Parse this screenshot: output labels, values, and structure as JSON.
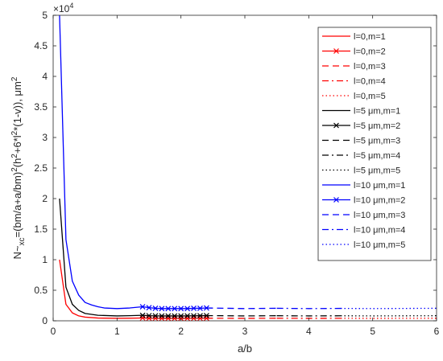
{
  "chart_data": {
    "type": "line",
    "xlabel": "a/b",
    "ylabel": "N~xc=(bm/a+a/bm)2(h2+6*l2*(1-v)), μm2",
    "ylabel_parts": {
      "p1": "N~",
      "sub1": "xc",
      "p2": "=(bm/a+a/bm)",
      "sup1": "2",
      "p3": "(h",
      "sup2": "2",
      "p4": "+6*l",
      "sup3": "2",
      "p5": "*(1-v)), μm",
      "sup4": "2"
    },
    "y_multiplier": "×10",
    "y_multiplier_exp": "4",
    "xlim": [
      0,
      6
    ],
    "ylim": [
      0,
      5
    ],
    "x_ticks": [
      0,
      1,
      2,
      3,
      4,
      5,
      6
    ],
    "y_ticks": [
      0,
      0.5,
      1,
      1.5,
      2,
      2.5,
      3,
      3.5,
      4,
      4.5,
      5
    ],
    "x_tick_labels": [
      "0",
      "1",
      "2",
      "3",
      "4",
      "5",
      "6"
    ],
    "y_tick_labels": [
      "0",
      "0.5",
      "1",
      "1.5",
      "2",
      "2.5",
      "3",
      "3.5",
      "4",
      "4.5",
      "5"
    ],
    "grid": false,
    "legend_position": "top-right",
    "colors": {
      "l0": "#ff0000",
      "l5": "#000000",
      "l10": "#0000ff"
    },
    "series": [
      {
        "name": "l=0,m=1",
        "color": "#ff0000",
        "style": "solid",
        "marker": "none",
        "x": [
          0.1,
          0.2,
          0.3,
          0.4,
          0.5,
          0.7,
          1.0,
          1.2,
          1.4
        ],
        "y": [
          1.0,
          0.27,
          0.13,
          0.08,
          0.06,
          0.045,
          0.04,
          0.042,
          0.046
        ]
      },
      {
        "name": "l=0,m=2",
        "color": "#ff0000",
        "style": "solid",
        "marker": "x",
        "x": [
          1.4,
          1.5,
          1.6,
          1.7,
          1.8,
          1.9,
          2.0,
          2.1,
          2.2,
          2.3,
          2.4
        ],
        "y": [
          0.046,
          0.042,
          0.041,
          0.04,
          0.04,
          0.04,
          0.04,
          0.04,
          0.041,
          0.041,
          0.042
        ]
      },
      {
        "name": "l=0,m=3",
        "color": "#ff0000",
        "style": "dash",
        "marker": "none",
        "x": [
          2.4,
          3.0,
          3.5
        ],
        "y": [
          0.042,
          0.04,
          0.042
        ]
      },
      {
        "name": "l=0,m=4",
        "color": "#ff0000",
        "style": "dashdot",
        "marker": "none",
        "x": [
          3.5,
          4.0,
          4.5
        ],
        "y": [
          0.042,
          0.04,
          0.041
        ]
      },
      {
        "name": "l=0,m=5",
        "color": "#ff0000",
        "style": "dot",
        "marker": "none",
        "x": [
          4.5,
          5.0,
          6.0
        ],
        "y": [
          0.041,
          0.04,
          0.042
        ]
      },
      {
        "name": "l=5 μm,m=1",
        "color": "#000000",
        "style": "solid",
        "marker": "none",
        "x": [
          0.1,
          0.2,
          0.3,
          0.4,
          0.5,
          0.7,
          1.0,
          1.2,
          1.4
        ],
        "y": [
          2.0,
          0.55,
          0.27,
          0.17,
          0.12,
          0.09,
          0.08,
          0.084,
          0.09
        ]
      },
      {
        "name": "l=5 μm,m=2",
        "color": "#000000",
        "style": "solid",
        "marker": "x",
        "x": [
          1.4,
          1.5,
          1.6,
          1.7,
          1.8,
          1.9,
          2.0,
          2.1,
          2.2,
          2.3,
          2.4
        ],
        "y": [
          0.09,
          0.084,
          0.081,
          0.08,
          0.08,
          0.08,
          0.08,
          0.081,
          0.082,
          0.083,
          0.085
        ]
      },
      {
        "name": "l=5 μm,m=3",
        "color": "#000000",
        "style": "dash",
        "marker": "none",
        "x": [
          2.4,
          3.0,
          3.5
        ],
        "y": [
          0.085,
          0.08,
          0.083
        ]
      },
      {
        "name": "l=5 μm,m=4",
        "color": "#000000",
        "style": "dashdot",
        "marker": "none",
        "x": [
          3.5,
          4.0,
          4.5
        ],
        "y": [
          0.083,
          0.08,
          0.082
        ]
      },
      {
        "name": "l=5 μm,m=5",
        "color": "#000000",
        "style": "dot",
        "marker": "none",
        "x": [
          4.5,
          5.0,
          6.0
        ],
        "y": [
          0.082,
          0.08,
          0.083
        ]
      },
      {
        "name": "l=10 μm,m=1",
        "color": "#0000ff",
        "style": "solid",
        "marker": "none",
        "x": [
          0.1,
          0.2,
          0.3,
          0.4,
          0.5,
          0.6,
          0.7,
          0.8,
          1.0,
          1.2,
          1.4
        ],
        "y": [
          5.0,
          1.33,
          0.65,
          0.42,
          0.3,
          0.26,
          0.23,
          0.21,
          0.2,
          0.21,
          0.23
        ]
      },
      {
        "name": "l=10 μm,m=2",
        "color": "#0000ff",
        "style": "solid",
        "marker": "x",
        "x": [
          1.4,
          1.5,
          1.6,
          1.7,
          1.8,
          1.9,
          2.0,
          2.1,
          2.2,
          2.3,
          2.4
        ],
        "y": [
          0.23,
          0.215,
          0.205,
          0.2,
          0.2,
          0.2,
          0.2,
          0.2,
          0.205,
          0.205,
          0.21
        ]
      },
      {
        "name": "l=10 μm,m=3",
        "color": "#0000ff",
        "style": "dash",
        "marker": "none",
        "x": [
          2.4,
          3.0,
          3.5
        ],
        "y": [
          0.21,
          0.2,
          0.205
        ]
      },
      {
        "name": "l=10 μm,m=4",
        "color": "#0000ff",
        "style": "dashdot",
        "marker": "none",
        "x": [
          3.5,
          4.0,
          4.5
        ],
        "y": [
          0.205,
          0.2,
          0.203
        ]
      },
      {
        "name": "l=10 μm,m=5",
        "color": "#0000ff",
        "style": "dot",
        "marker": "none",
        "x": [
          4.5,
          5.0,
          6.0
        ],
        "y": [
          0.203,
          0.2,
          0.205
        ]
      }
    ]
  }
}
